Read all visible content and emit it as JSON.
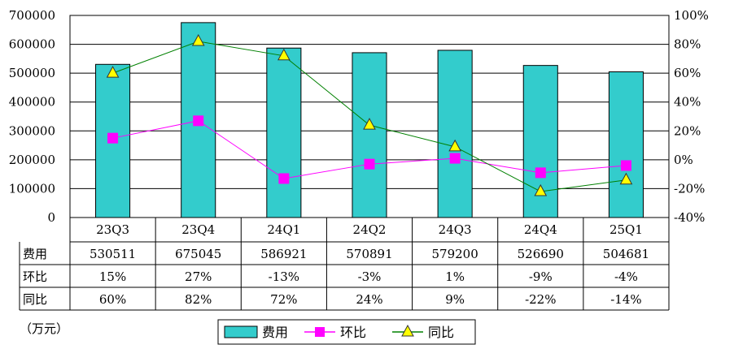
{
  "chart_data": {
    "type": "bar",
    "categories": [
      "23Q3",
      "23Q4",
      "24Q1",
      "24Q2",
      "24Q3",
      "24Q4",
      "25Q1"
    ],
    "series": [
      {
        "name": "费用",
        "type": "bar",
        "axis": "left",
        "values": [
          530511,
          675045,
          586921,
          570891,
          579200,
          526690,
          504681
        ],
        "color": "#33CCCC"
      },
      {
        "name": "环比",
        "type": "line",
        "axis": "right",
        "values": [
          15,
          27,
          -13,
          -3,
          1,
          -9,
          -4
        ],
        "color": "#FF00FF",
        "marker": "square"
      },
      {
        "name": "同比",
        "type": "line",
        "axis": "right",
        "values": [
          60,
          82,
          72,
          24,
          9,
          -22,
          -14
        ],
        "color": "#008000",
        "marker_fill": "#FFFF00",
        "marker": "triangle"
      }
    ],
    "left_axis": {
      "ylim": [
        0,
        700000
      ],
      "ticks": [
        "0",
        "100000",
        "200000",
        "300000",
        "400000",
        "500000",
        "600000",
        "700000"
      ]
    },
    "right_axis": {
      "ylim": [
        -40,
        100
      ],
      "ticks": [
        "-40%",
        "-20%",
        "0%",
        "20%",
        "40%",
        "60%",
        "80%",
        "100%"
      ]
    },
    "grid": true,
    "legend_position": "bottom",
    "table": {
      "rows": [
        {
          "label": "费用",
          "cells": [
            "530511",
            "675045",
            "586921",
            "570891",
            "579200",
            "526690",
            "504681"
          ]
        },
        {
          "label": "环比",
          "cells": [
            "15%",
            "27%",
            "-13%",
            "-3%",
            "1%",
            "-9%",
            "-4%"
          ]
        },
        {
          "label": "同比",
          "cells": [
            "60%",
            "82%",
            "72%",
            "24%",
            "9%",
            "-22%",
            "-14%"
          ]
        }
      ]
    },
    "unit_label": "（万元）"
  }
}
